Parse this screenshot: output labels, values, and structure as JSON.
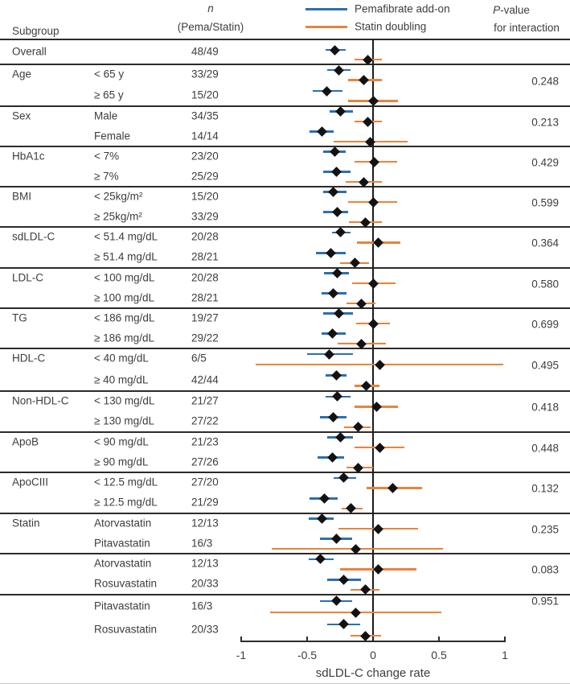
{
  "header": {
    "subgroup": "Subgroup",
    "n_italic": "n",
    "n_sub": "(Pema/Statin)",
    "p_italic": "P",
    "p_rest": "-value",
    "p_line2": "for interaction"
  },
  "legend": {
    "items": [
      {
        "label": "Pemafibrate add-on",
        "color": "#2C70AD"
      },
      {
        "label": "Statin doubling",
        "color": "#E8843C"
      }
    ]
  },
  "colors": {
    "pemafibrate_blue": "#2C70AD",
    "statin_orange": "#E8843C",
    "marker_black": "#121212",
    "rule_dark": "#2B2B2B",
    "text_gray": "#3D3D3D"
  },
  "chart_data": {
    "type": "forest",
    "xlabel": "sdLDL-C change rate",
    "xlim": [
      -1,
      1
    ],
    "x_ticks": [
      -1,
      -0.5,
      0,
      0.5,
      1
    ],
    "x_tick_labels": [
      "-1",
      "-0.5",
      "0",
      "0.5",
      "1"
    ],
    "series_names": [
      "Pemafibrate add-on",
      "Statin doubling"
    ],
    "sections": [
      {
        "label": "Overall",
        "p_value": "",
        "rows": [
          {
            "sublabel": "",
            "n": "48/49",
            "pema": {
              "est": -0.29,
              "lo": -0.36,
              "hi": -0.21
            },
            "statin": {
              "est": -0.04,
              "lo": -0.14,
              "hi": 0.07
            }
          }
        ]
      },
      {
        "label": "Age",
        "p_value": "0.248",
        "rows": [
          {
            "sublabel": "< 65 y",
            "n": "33/29",
            "pema": {
              "est": -0.26,
              "lo": -0.35,
              "hi": -0.17
            },
            "statin": {
              "est": -0.07,
              "lo": -0.19,
              "hi": 0.07
            }
          },
          {
            "sublabel": "≥ 65 y",
            "n": "15/20",
            "pema": {
              "est": -0.35,
              "lo": -0.46,
              "hi": -0.23
            },
            "statin": {
              "est": 0.0,
              "lo": -0.19,
              "hi": 0.19
            }
          }
        ]
      },
      {
        "label": "Sex",
        "p_value": "0.213",
        "rows": [
          {
            "sublabel": "Male",
            "n": "34/35",
            "pema": {
              "est": -0.25,
              "lo": -0.33,
              "hi": -0.15
            },
            "statin": {
              "est": -0.04,
              "lo": -0.14,
              "hi": 0.07
            }
          },
          {
            "sublabel": "Female",
            "n": "14/14",
            "pema": {
              "est": -0.39,
              "lo": -0.48,
              "hi": -0.3
            },
            "statin": {
              "est": -0.02,
              "lo": -0.3,
              "hi": 0.26
            }
          }
        ]
      },
      {
        "label": "HbA1c",
        "p_value": "0.429",
        "rows": [
          {
            "sublabel": "< 7%",
            "n": "23/20",
            "pema": {
              "est": -0.29,
              "lo": -0.38,
              "hi": -0.21
            },
            "statin": {
              "est": 0.01,
              "lo": -0.14,
              "hi": 0.18
            }
          },
          {
            "sublabel": "≥ 7%",
            "n": "25/29",
            "pema": {
              "est": -0.28,
              "lo": -0.38,
              "hi": -0.17
            },
            "statin": {
              "est": -0.07,
              "lo": -0.21,
              "hi": 0.07
            }
          }
        ]
      },
      {
        "label": "BMI",
        "p_value": "0.599",
        "rows": [
          {
            "sublabel": "< 25kg/m²",
            "n": "15/20",
            "pema": {
              "est": -0.3,
              "lo": -0.38,
              "hi": -0.2
            },
            "statin": {
              "est": 0.0,
              "lo": -0.19,
              "hi": 0.18
            }
          },
          {
            "sublabel": "≥ 25kg/m²",
            "n": "33/29",
            "pema": {
              "est": -0.27,
              "lo": -0.38,
              "hi": -0.19
            },
            "statin": {
              "est": -0.06,
              "lo": -0.18,
              "hi": 0.07
            }
          }
        ]
      },
      {
        "label": "sdLDL-C",
        "p_value": "0.364",
        "rows": [
          {
            "sublabel": "< 51.4 mg/dL",
            "n": "20/28",
            "pema": {
              "est": -0.25,
              "lo": -0.31,
              "hi": -0.17
            },
            "statin": {
              "est": 0.04,
              "lo": -0.12,
              "hi": 0.21
            }
          },
          {
            "sublabel": "≥ 51.4 mg/dL",
            "n": "28/21",
            "pema": {
              "est": -0.32,
              "lo": -0.43,
              "hi": -0.21
            },
            "statin": {
              "est": -0.14,
              "lo": -0.25,
              "hi": -0.03
            }
          }
        ]
      },
      {
        "label": "LDL-C",
        "p_value": "0.580",
        "rows": [
          {
            "sublabel": "< 100 mg/dL",
            "n": "20/28",
            "pema": {
              "est": -0.27,
              "lo": -0.37,
              "hi": -0.18
            },
            "statin": {
              "est": 0.0,
              "lo": -0.16,
              "hi": 0.17
            }
          },
          {
            "sublabel": "≥ 100 mg/dL",
            "n": "28/21",
            "pema": {
              "est": -0.3,
              "lo": -0.39,
              "hi": -0.2
            },
            "statin": {
              "est": -0.09,
              "lo": -0.2,
              "hi": 0.02
            }
          }
        ]
      },
      {
        "label": "TG",
        "p_value": "0.699",
        "rows": [
          {
            "sublabel": "< 186 mg/dL",
            "n": "19/27",
            "pema": {
              "est": -0.26,
              "lo": -0.38,
              "hi": -0.15
            },
            "statin": {
              "est": 0.0,
              "lo": -0.13,
              "hi": 0.13
            }
          },
          {
            "sublabel": "≥ 186 mg/dL",
            "n": "29/22",
            "pema": {
              "est": -0.31,
              "lo": -0.39,
              "hi": -0.21
            },
            "statin": {
              "est": -0.09,
              "lo": -0.27,
              "hi": 0.1
            }
          }
        ]
      },
      {
        "label": "HDL-C",
        "p_value": "0.495",
        "rows": [
          {
            "sublabel": "< 40 mg/dL",
            "n": "6/5",
            "pema": {
              "est": -0.33,
              "lo": -0.5,
              "hi": -0.15
            },
            "statin": {
              "est": 0.05,
              "lo": -0.89,
              "hi": 0.99
            }
          },
          {
            "sublabel": "≥ 40 mg/dL",
            "n": "42/44",
            "pema": {
              "est": -0.28,
              "lo": -0.36,
              "hi": -0.2
            },
            "statin": {
              "est": -0.05,
              "lo": -0.14,
              "hi": 0.05
            }
          }
        ]
      },
      {
        "label": "Non-HDL-C",
        "p_value": "0.418",
        "rows": [
          {
            "sublabel": "< 130 mg/dL",
            "n": "21/27",
            "pema": {
              "est": -0.27,
              "lo": -0.36,
              "hi": -0.17
            },
            "statin": {
              "est": 0.03,
              "lo": -0.14,
              "hi": 0.19
            }
          },
          {
            "sublabel": "≥ 130 mg/dL",
            "n": "27/22",
            "pema": {
              "est": -0.3,
              "lo": -0.4,
              "hi": -0.2
            },
            "statin": {
              "est": -0.11,
              "lo": -0.22,
              "hi": -0.02
            }
          }
        ]
      },
      {
        "label": "ApoB",
        "p_value": "0.448",
        "rows": [
          {
            "sublabel": "< 90 mg/dL",
            "n": "21/23",
            "pema": {
              "est": -0.25,
              "lo": -0.35,
              "hi": -0.15
            },
            "statin": {
              "est": 0.05,
              "lo": -0.14,
              "hi": 0.24
            }
          },
          {
            "sublabel": "≥ 90 mg/dL",
            "n": "27/26",
            "pema": {
              "est": -0.31,
              "lo": -0.42,
              "hi": -0.22
            },
            "statin": {
              "est": -0.11,
              "lo": -0.2,
              "hi": 0.0
            }
          }
        ]
      },
      {
        "label": "ApoCIII",
        "p_value": "0.132",
        "rows": [
          {
            "sublabel": "< 12.5 mg/dL",
            "n": "27/20",
            "pema": {
              "est": -0.22,
              "lo": -0.3,
              "hi": -0.13
            },
            "statin": {
              "est": 0.15,
              "lo": -0.05,
              "hi": 0.37
            }
          },
          {
            "sublabel": "≥ 12.5 mg/dL",
            "n": "21/29",
            "pema": {
              "est": -0.37,
              "lo": -0.48,
              "hi": -0.27
            },
            "statin": {
              "est": -0.17,
              "lo": -0.24,
              "hi": -0.08
            }
          }
        ]
      },
      {
        "label": "Statin",
        "p_value": "0.235",
        "rows": [
          {
            "sublabel": "Atorvastatin",
            "n": "12/13",
            "pema": {
              "est": -0.39,
              "lo": -0.49,
              "hi": -0.3
            },
            "statin": {
              "est": 0.04,
              "lo": -0.26,
              "hi": 0.34
            }
          },
          {
            "sublabel": "Pitavastatin",
            "n": "16/3",
            "pema": {
              "est": -0.28,
              "lo": -0.4,
              "hi": -0.16
            },
            "statin": {
              "est": -0.13,
              "lo": -0.77,
              "hi": 0.53
            }
          }
        ]
      },
      {
        "label": "",
        "p_value": "0.083",
        "rows": [
          {
            "sublabel": "Atorvastatin",
            "n": "12/13",
            "pema": {
              "est": -0.4,
              "lo": -0.49,
              "hi": -0.3
            },
            "statin": {
              "est": 0.04,
              "lo": -0.25,
              "hi": 0.33
            }
          },
          {
            "sublabel": "Rosuvastatin",
            "n": "20/33",
            "pema": {
              "est": -0.22,
              "lo": -0.35,
              "hi": -0.09
            },
            "statin": {
              "est": -0.06,
              "lo": -0.17,
              "hi": 0.05
            }
          }
        ]
      },
      {
        "label": "",
        "p_value": "0.951",
        "rows": [
          {
            "sublabel": "Pitavastatin",
            "n": "16/3",
            "pema": {
              "est": -0.28,
              "lo": -0.4,
              "hi": -0.16
            },
            "statin": {
              "est": -0.13,
              "lo": -0.78,
              "hi": 0.52
            }
          },
          {
            "sublabel": "Rosuvastatin",
            "n": "20/33",
            "pema": {
              "est": -0.22,
              "lo": -0.35,
              "hi": -0.1
            },
            "statin": {
              "est": -0.06,
              "lo": -0.17,
              "hi": 0.06
            }
          }
        ]
      }
    ]
  }
}
